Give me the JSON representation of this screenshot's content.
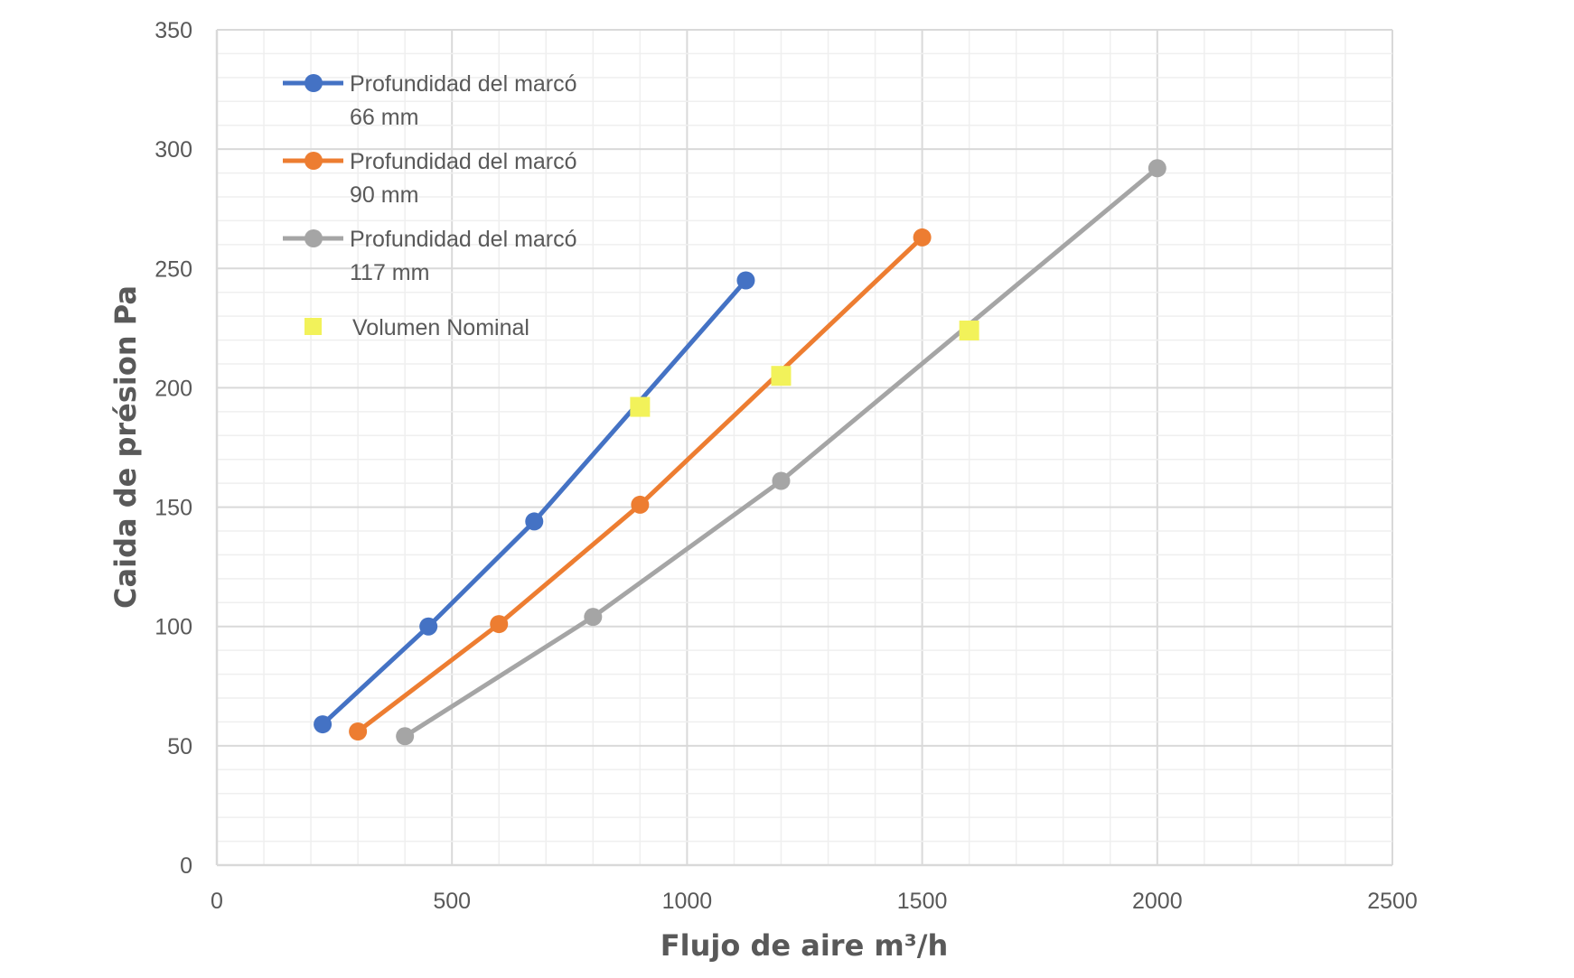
{
  "chart_data": {
    "type": "line",
    "xlabel": "Flujo de aire m³/h",
    "ylabel": "Caida de présion Pa",
    "xlim": [
      0,
      2500
    ],
    "ylim": [
      0,
      350
    ],
    "x_ticks": [
      "0",
      "500",
      "1000",
      "1500",
      "2000",
      "2500"
    ],
    "y_ticks": [
      "0",
      "50",
      "100",
      "150",
      "200",
      "250",
      "300",
      "350"
    ],
    "grid": true,
    "legend_position": "top-left",
    "series": [
      {
        "name_line1": "Profundidad  del marcó",
        "name_line2": "66 mm",
        "color": "#4472C4",
        "points": [
          [
            225,
            59
          ],
          [
            450,
            100
          ],
          [
            675,
            144
          ],
          [
            1125,
            245
          ]
        ]
      },
      {
        "name_line1": "Profundidad  del marcó",
        "name_line2": "90 mm",
        "color": "#ED7D31",
        "points": [
          [
            300,
            56
          ],
          [
            600,
            101
          ],
          [
            900,
            151
          ],
          [
            1500,
            263
          ]
        ]
      },
      {
        "name_line1": "Profundidad  del marcó",
        "name_line2": "117 mm",
        "color": "#A5A5A5",
        "points": [
          [
            400,
            54
          ],
          [
            800,
            104
          ],
          [
            1200,
            161
          ],
          [
            2000,
            292
          ]
        ]
      }
    ],
    "nominal": {
      "name": "Volumen Nominal",
      "color": "#F2F25A",
      "points": [
        [
          900,
          192
        ],
        [
          1200,
          205
        ],
        [
          1600,
          224
        ]
      ]
    }
  }
}
